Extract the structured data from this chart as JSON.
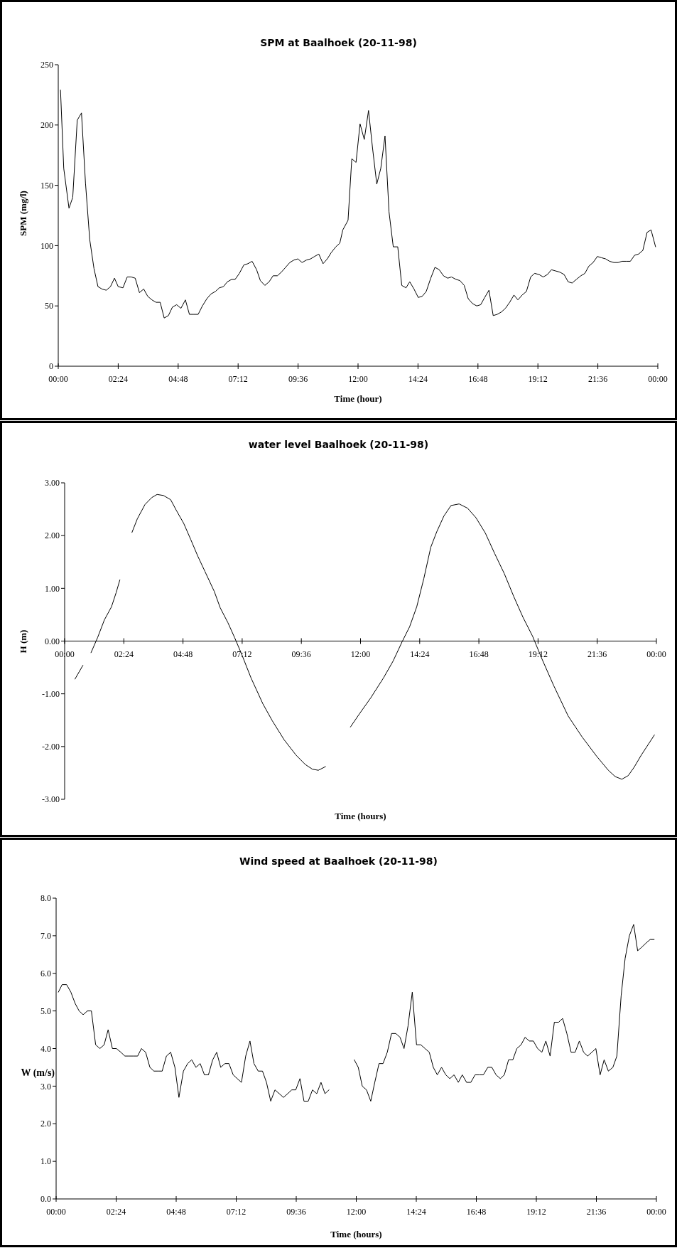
{
  "chart_data": [
    {
      "type": "line",
      "title": "SPM at Baalhoek (20-11-98)",
      "xlabel": "Time (hour)",
      "ylabel": "SPM (mg/l)",
      "xlim": [
        0,
        24
      ],
      "xticks": [
        {
          "value": 0,
          "label": "00:00"
        },
        {
          "value": 2.4,
          "label": "02:24"
        },
        {
          "value": 4.8,
          "label": "04:48"
        },
        {
          "value": 7.2,
          "label": "07:12"
        },
        {
          "value": 9.6,
          "label": "09:36"
        },
        {
          "value": 12,
          "label": "12:00"
        },
        {
          "value": 14.4,
          "label": "14:24"
        },
        {
          "value": 16.8,
          "label": "16:48"
        },
        {
          "value": 19.2,
          "label": "19:12"
        },
        {
          "value": 21.6,
          "label": "21:36"
        },
        {
          "value": 24,
          "label": "00:00"
        }
      ],
      "ylim": [
        0,
        250
      ],
      "yticks": [
        0,
        50,
        100,
        150,
        200,
        250
      ],
      "x": [
        0.09,
        0.22,
        0.43,
        0.58,
        0.76,
        0.93,
        1.09,
        1.26,
        1.43,
        1.59,
        1.75,
        1.92,
        2.09,
        2.25,
        2.4,
        2.59,
        2.76,
        2.92,
        3.08,
        3.25,
        3.42,
        3.58,
        3.75,
        3.91,
        4.08,
        4.24,
        4.41,
        4.57,
        4.74,
        4.91,
        5.09,
        5.25,
        5.43,
        5.6,
        5.77,
        5.95,
        6.12,
        6.29,
        6.45,
        6.61,
        6.77,
        6.94,
        7.08,
        7.25,
        7.43,
        7.59,
        7.76,
        7.94,
        8.09,
        8.27,
        8.44,
        8.6,
        8.77,
        8.93,
        9.1,
        9.27,
        9.43,
        9.59,
        9.76,
        9.93,
        10.1,
        10.26,
        10.43,
        10.6,
        10.77,
        10.92,
        11.11,
        11.27,
        11.39,
        11.6,
        11.75,
        11.92,
        12.08,
        12.25,
        12.42,
        12.58,
        12.75,
        12.91,
        13.08,
        13.24,
        13.41,
        13.59,
        13.75,
        13.92,
        14.07,
        14.24,
        14.41,
        14.57,
        14.73,
        14.91,
        15.08,
        15.25,
        15.42,
        15.59,
        15.74,
        15.92,
        16.08,
        16.25,
        16.41,
        16.58,
        16.75,
        16.91,
        17.07,
        17.24,
        17.41,
        17.57,
        17.74,
        17.9,
        18.07,
        18.24,
        18.4,
        18.57,
        18.74,
        18.91,
        19.07,
        19.25,
        19.41,
        19.58,
        19.74,
        19.91,
        20.08,
        20.25,
        20.41,
        20.57,
        20.74,
        20.92,
        21.08,
        21.24,
        21.41,
        21.58,
        21.74,
        21.91,
        22.07,
        22.24,
        22.41,
        22.57,
        22.74,
        22.9,
        23.07,
        23.23,
        23.4,
        23.57,
        23.73,
        23.91
      ],
      "series": [
        {
          "color": "#000000",
          "values": [
            229,
            164,
            131,
            140,
            204,
            210,
            152,
            105,
            81,
            66,
            64,
            63,
            66,
            73,
            66,
            65,
            74,
            74,
            73,
            61,
            64,
            58,
            55,
            53,
            53,
            40,
            42,
            49,
            51,
            48,
            55,
            43,
            43,
            43,
            50,
            56,
            60,
            62,
            65,
            66,
            70,
            72,
            72,
            77,
            84,
            85,
            87,
            80,
            71,
            67,
            70,
            75,
            75,
            78,
            82,
            86,
            88,
            89,
            86,
            88,
            89,
            91,
            93,
            85,
            89,
            94,
            99,
            102,
            113,
            121,
            172,
            169,
            201,
            188,
            212,
            181,
            151,
            164,
            191,
            128,
            99,
            99,
            67,
            65,
            70,
            64,
            57,
            58,
            62,
            73,
            82,
            80,
            75,
            73,
            74,
            72,
            71,
            67,
            56,
            52,
            50,
            51,
            57,
            63,
            42,
            43,
            45,
            48,
            53,
            59,
            55,
            59,
            62,
            74,
            77,
            76,
            74,
            76,
            80,
            79,
            78,
            76,
            70,
            69,
            72,
            75,
            77,
            83,
            86,
            91,
            90,
            89,
            87,
            86,
            86,
            87,
            87,
            87,
            92,
            93,
            96,
            111,
            113,
            99
          ]
        }
      ]
    },
    {
      "type": "line",
      "title": "water level Baalhoek (20-11-98)",
      "xlabel": "Time (hours)",
      "ylabel": "H (m)",
      "xlim": [
        0,
        24
      ],
      "xticks": [
        {
          "value": 0,
          "label": "00:00"
        },
        {
          "value": 2.4,
          "label": "02:24"
        },
        {
          "value": 4.8,
          "label": "04:48"
        },
        {
          "value": 7.2,
          "label": "07:12"
        },
        {
          "value": 9.6,
          "label": "09:36"
        },
        {
          "value": 12,
          "label": "12:00"
        },
        {
          "value": 14.4,
          "label": "14:24"
        },
        {
          "value": 16.8,
          "label": "16:48"
        },
        {
          "value": 19.2,
          "label": "19:12"
        },
        {
          "value": 21.6,
          "label": "21:36"
        },
        {
          "value": 24,
          "label": "00:00"
        }
      ],
      "ylim": [
        -3,
        3
      ],
      "yticks": [
        {
          "value": -3,
          "label": "-3.00"
        },
        {
          "value": -2,
          "label": "-2.00"
        },
        {
          "value": -1,
          "label": "-1.00"
        },
        {
          "value": 0,
          "label": "0.00"
        },
        {
          "value": 1,
          "label": "1.00"
        },
        {
          "value": 2,
          "label": "2.00"
        },
        {
          "value": 3,
          "label": "3.00"
        }
      ],
      "x": [
        0.42,
        0.74,
        0.9,
        1.07,
        1.34,
        1.61,
        1.9,
        2.09,
        2.24,
        2.5,
        2.73,
        2.95,
        3.26,
        3.53,
        3.75,
        4.01,
        4.3,
        4.54,
        4.83,
        5.11,
        5.4,
        5.69,
        6.07,
        6.31,
        6.62,
        6.89,
        7.18,
        7.56,
        8.04,
        8.42,
        8.9,
        9.38,
        9.76,
        10.05,
        10.29,
        10.58,
        11.1,
        11.59,
        11.97,
        12.41,
        12.93,
        13.32,
        13.7,
        13.99,
        14.28,
        14.57,
        14.85,
        15.09,
        15.38,
        15.67,
        16.0,
        16.34,
        16.68,
        17.06,
        17.44,
        17.83,
        18.21,
        18.59,
        18.98,
        19.36,
        19.84,
        20.42,
        20.99,
        21.57,
        22.05,
        22.33,
        22.6,
        22.86,
        23.1,
        23.39,
        23.92
      ],
      "series": [
        {
          "color": "#000000",
          "values": [
            -0.72,
            -0.46,
            null,
            -0.22,
            0.07,
            0.4,
            0.65,
            0.92,
            1.16,
            null,
            2.06,
            2.32,
            2.59,
            2.72,
            2.78,
            2.76,
            2.68,
            2.47,
            2.23,
            1.93,
            1.61,
            1.32,
            0.94,
            0.63,
            0.35,
            0.07,
            -0.25,
            -0.7,
            -1.19,
            -1.51,
            -1.87,
            -2.16,
            -2.34,
            -2.43,
            -2.45,
            -2.38,
            null,
            -1.63,
            -1.37,
            -1.08,
            -0.7,
            -0.38,
            0.0,
            0.27,
            0.65,
            1.19,
            1.78,
            2.07,
            2.37,
            2.57,
            2.6,
            2.52,
            2.34,
            2.05,
            1.66,
            1.28,
            0.85,
            0.45,
            0.09,
            -0.34,
            -0.85,
            -1.42,
            -1.82,
            -2.18,
            -2.45,
            -2.57,
            -2.62,
            -2.55,
            -2.39,
            -2.16,
            -1.78
          ]
        }
      ]
    },
    {
      "type": "line",
      "title": "Wind speed at Baalhoek (20-11-98)",
      "xlabel": "Time (hours)",
      "ylabel": "W (m/s)",
      "xlim": [
        0,
        24
      ],
      "xticks": [
        {
          "value": 0,
          "label": "00:00"
        },
        {
          "value": 2.4,
          "label": "02:24"
        },
        {
          "value": 4.8,
          "label": "04:48"
        },
        {
          "value": 7.2,
          "label": "07:12"
        },
        {
          "value": 9.6,
          "label": "09:36"
        },
        {
          "value": 12,
          "label": "12:00"
        },
        {
          "value": 14.4,
          "label": "14:24"
        },
        {
          "value": 16.8,
          "label": "16:48"
        },
        {
          "value": 19.2,
          "label": "19:12"
        },
        {
          "value": 21.6,
          "label": "21:36"
        },
        {
          "value": 24,
          "label": "00:00"
        }
      ],
      "ylim": [
        0,
        8
      ],
      "yticks": [
        {
          "value": 0,
          "label": "0.0"
        },
        {
          "value": 1,
          "label": "1.0"
        },
        {
          "value": 2,
          "label": "2.0"
        },
        {
          "value": 3,
          "label": "3.0"
        },
        {
          "value": 4,
          "label": "4.0"
        },
        {
          "value": 5,
          "label": "5.0"
        },
        {
          "value": 6,
          "label": "6.0"
        },
        {
          "value": 7,
          "label": "7.0"
        },
        {
          "value": 8,
          "label": "8.0"
        }
      ],
      "x": [
        0.09,
        0.24,
        0.42,
        0.59,
        0.76,
        0.92,
        1.08,
        1.25,
        1.41,
        1.58,
        1.75,
        1.92,
        2.08,
        2.25,
        2.41,
        2.59,
        2.75,
        2.92,
        3.09,
        3.26,
        3.41,
        3.58,
        3.75,
        3.91,
        4.07,
        4.24,
        4.41,
        4.58,
        4.75,
        4.91,
        5.09,
        5.26,
        5.42,
        5.59,
        5.76,
        5.93,
        6.09,
        6.26,
        6.42,
        6.58,
        6.75,
        6.91,
        7.08,
        7.24,
        7.41,
        7.58,
        7.75,
        7.91,
        8.08,
        8.25,
        8.41,
        8.58,
        8.75,
        8.92,
        9.09,
        9.26,
        9.42,
        9.58,
        9.75,
        9.91,
        10.08,
        10.25,
        10.42,
        10.59,
        10.75,
        10.91,
        11.4,
        11.92,
        12.08,
        12.24,
        12.41,
        12.58,
        12.74,
        12.91,
        13.07,
        13.24,
        13.41,
        13.58,
        13.75,
        13.91,
        14.07,
        14.24,
        14.41,
        14.58,
        14.75,
        14.92,
        15.08,
        15.24,
        15.41,
        15.58,
        15.74,
        15.91,
        16.08,
        16.24,
        16.41,
        16.58,
        16.75,
        16.91,
        17.08,
        17.26,
        17.42,
        17.59,
        17.76,
        17.92,
        18.09,
        18.26,
        18.42,
        18.59,
        18.75,
        18.92,
        19.08,
        19.25,
        19.42,
        19.58,
        19.75,
        19.92,
        20.09,
        20.25,
        20.42,
        20.59,
        20.75,
        20.92,
        21.09,
        21.25,
        21.42,
        21.58,
        21.75,
        21.91,
        22.08,
        22.26,
        22.42,
        22.59,
        22.75,
        22.92,
        23.09,
        23.25,
        23.42,
        23.58,
        23.75,
        23.91
      ],
      "series": [
        {
          "color": "#000000",
          "values": [
            5.5,
            5.7,
            5.7,
            5.5,
            5.2,
            5.0,
            4.9,
            5.0,
            5.0,
            4.1,
            4.0,
            4.1,
            4.5,
            4.0,
            4.0,
            3.9,
            3.8,
            3.8,
            3.8,
            3.8,
            4.0,
            3.9,
            3.5,
            3.4,
            3.4,
            3.4,
            3.8,
            3.9,
            3.5,
            2.7,
            3.4,
            3.6,
            3.7,
            3.5,
            3.6,
            3.3,
            3.3,
            3.7,
            3.9,
            3.5,
            3.6,
            3.6,
            3.3,
            3.2,
            3.1,
            3.8,
            4.2,
            3.6,
            3.4,
            3.4,
            3.1,
            2.6,
            2.9,
            2.8,
            2.7,
            2.8,
            2.9,
            2.9,
            3.2,
            2.6,
            2.6,
            2.9,
            2.8,
            3.1,
            2.8,
            2.9,
            null,
            3.7,
            3.5,
            3.0,
            2.9,
            2.6,
            3.1,
            3.6,
            3.6,
            3.9,
            4.4,
            4.4,
            4.3,
            4.0,
            4.6,
            5.5,
            4.1,
            4.1,
            4.0,
            3.9,
            3.5,
            3.3,
            3.5,
            3.3,
            3.2,
            3.3,
            3.1,
            3.3,
            3.1,
            3.1,
            3.3,
            3.3,
            3.3,
            3.5,
            3.5,
            3.3,
            3.2,
            3.3,
            3.7,
            3.7,
            4.0,
            4.1,
            4.3,
            4.2,
            4.2,
            4.0,
            3.9,
            4.2,
            3.8,
            4.7,
            4.7,
            4.8,
            4.4,
            3.9,
            3.9,
            4.2,
            3.9,
            3.8,
            3.9,
            4.0,
            3.3,
            3.7,
            3.4,
            3.5,
            3.8,
            5.4,
            6.4,
            7.0,
            7.3,
            6.6,
            6.7,
            6.8,
            6.9,
            6.9
          ]
        }
      ]
    }
  ]
}
